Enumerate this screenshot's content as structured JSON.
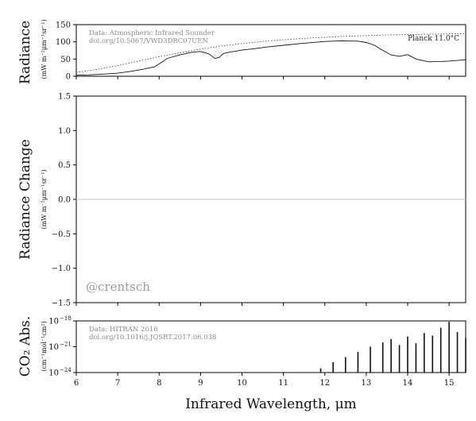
{
  "chart_data": [
    {
      "type": "line",
      "panel": "radiance",
      "ylabel": "Radiance",
      "yunits": "(mW m⁻²μm⁻¹sr⁻¹)",
      "xlim": [
        6,
        15.4
      ],
      "ylim": [
        0,
        150
      ],
      "yticks": [
        0,
        50,
        100,
        150
      ],
      "grid": false,
      "annotation": [
        "Data: Atmospheric Infrared Sounder",
        "doi.org/10.5067/VWD3DRC07UEN"
      ],
      "series": [
        {
          "name": "Planck 11.0°C",
          "style": "dotted",
          "x": [
            6.0,
            6.5,
            7.0,
            7.5,
            8.0,
            8.5,
            9.0,
            9.5,
            10.0,
            10.5,
            11.0,
            11.5,
            12.0,
            12.5,
            13.0,
            13.5,
            14.0,
            14.5,
            15.0,
            15.4
          ],
          "y": [
            11,
            20,
            31,
            44,
            57,
            68,
            79,
            88,
            95,
            101,
            106,
            110,
            113,
            116,
            118,
            120,
            121,
            122,
            123,
            124
          ]
        },
        {
          "name": "",
          "style": "solid",
          "x": [
            6.0,
            6.3,
            6.6,
            7.0,
            7.3,
            7.6,
            7.9,
            8.2,
            8.5,
            8.8,
            9.0,
            9.2,
            9.35,
            9.45,
            9.55,
            9.7,
            9.85,
            10.0,
            10.3,
            10.6,
            11.0,
            11.5,
            12.0,
            12.4,
            12.8,
            13.0,
            13.2,
            13.4,
            13.6,
            13.8,
            14.0,
            14.2,
            14.5,
            14.8,
            15.0,
            15.2,
            15.4
          ],
          "y": [
            3,
            4,
            6,
            9,
            14,
            20,
            28,
            52,
            62,
            70,
            72,
            65,
            52,
            55,
            66,
            70,
            73,
            76,
            80,
            85,
            90,
            96,
            101,
            103,
            102,
            98,
            90,
            75,
            62,
            58,
            63,
            50,
            42,
            43,
            44,
            46,
            48
          ]
        }
      ]
    },
    {
      "type": "line",
      "panel": "radiance_change",
      "ylabel": "Radiance Change",
      "yunits": "(mW m⁻²μm⁻¹sr⁻¹)",
      "xlim": [
        6,
        15.4
      ],
      "ylim": [
        -1.5,
        1.5
      ],
      "yticks": [
        -1.5,
        -1.0,
        -0.5,
        0.0,
        0.5,
        1.0,
        1.5
      ],
      "grid": false,
      "watermark": "@crentsch",
      "series": [
        {
          "name": "",
          "x": [
            6.0,
            15.4
          ],
          "y": [
            0.0,
            0.0
          ]
        }
      ]
    },
    {
      "type": "line",
      "panel": "co2_absorption",
      "ylabel": "CO₂ Abs.",
      "yunits": "(cm⁻¹mol⁻¹cm²)",
      "xlabel": "Infrared Wavelength, μm",
      "xlim": [
        6,
        15.4
      ],
      "xticks": [
        6,
        7,
        8,
        9,
        10,
        11,
        12,
        13,
        14,
        15
      ],
      "ylim_log10": [
        -24,
        -18
      ],
      "yticks_log10": [
        -24,
        -21,
        -18
      ],
      "log_scale": true,
      "grid": false,
      "annotation": [
        "Data: HITRAN 2016",
        "doi.org/10.1016/j.JQSRT.2017.06.038"
      ],
      "series": [
        {
          "name": "",
          "x": [
            11.9,
            12.2,
            12.5,
            12.8,
            13.1,
            13.4,
            13.6,
            13.8,
            14.0,
            14.2,
            14.4,
            14.6,
            14.8,
            15.0,
            15.2,
            15.4
          ],
          "log10_y": [
            -23.5,
            -22.8,
            -22.2,
            -21.6,
            -21.0,
            -20.5,
            -20.1,
            -20.8,
            -19.8,
            -20.6,
            -19.4,
            -19.7,
            -18.8,
            -18.1,
            -19.3,
            -20.0
          ]
        }
      ]
    }
  ]
}
